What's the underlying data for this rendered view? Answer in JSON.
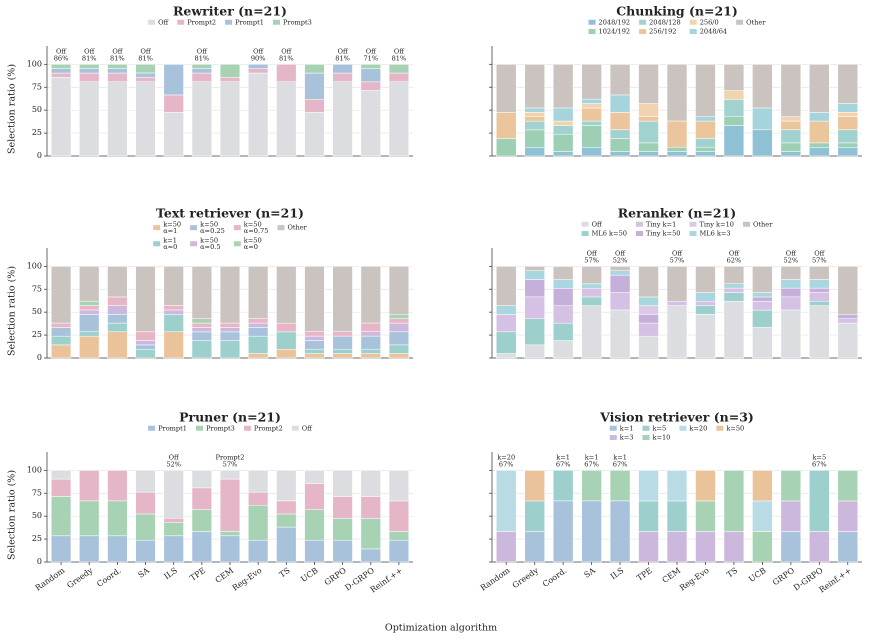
{
  "chart_data": [
    {
      "type": "stacked_bar",
      "title": "Rewriter (n=21)",
      "ylim": [
        0,
        120
      ],
      "yticks": [
        0,
        25,
        50,
        75,
        100
      ],
      "y_label": "Selection ratio (%)",
      "grid": true,
      "series": [
        {
          "name": "Off",
          "color": "#dcdde1",
          "values": [
            85.7,
            81.0,
            81.0,
            81.0,
            47.6,
            81.0,
            81.0,
            90.5,
            81.0,
            47.6,
            81.0,
            71.4,
            81.0
          ]
        },
        {
          "name": "Prompt2",
          "color": "#e5b6c8",
          "values": [
            4.8,
            9.5,
            9.5,
            4.8,
            19.0,
            9.5,
            4.8,
            4.8,
            19.0,
            14.3,
            9.5,
            9.5,
            9.5
          ]
        },
        {
          "name": "Prompt1",
          "color": "#a9c2dc",
          "values": [
            4.8,
            4.8,
            4.8,
            4.8,
            33.3,
            4.8,
            0,
            4.8,
            0,
            28.6,
            9.5,
            14.3,
            0
          ]
        },
        {
          "name": "Prompt3",
          "color": "#a7d3b4",
          "values": [
            4.8,
            4.8,
            4.8,
            9.5,
            0,
            4.8,
            14.3,
            0,
            0,
            9.5,
            0,
            4.8,
            9.5
          ]
        }
      ],
      "annotations": [
        {
          "category": "Random",
          "text": [
            "Off",
            "86%"
          ]
        },
        {
          "category": "Greedy",
          "text": [
            "Off",
            "81%"
          ]
        },
        {
          "category": "Coord.",
          "text": [
            "Off",
            "81%"
          ]
        },
        {
          "category": "SA",
          "text": [
            "Off",
            "81%"
          ]
        },
        {
          "category": "TPE",
          "text": [
            "Off",
            "81%"
          ]
        },
        {
          "category": "Reg-Evo",
          "text": [
            "Off",
            "90%"
          ]
        },
        {
          "category": "TS",
          "text": [
            "Off",
            "81%"
          ]
        },
        {
          "category": "GRPO",
          "text": [
            "Off",
            "81%"
          ]
        },
        {
          "category": "D-GRPO",
          "text": [
            "Off",
            "71%"
          ]
        },
        {
          "category": "Reinf.++",
          "text": [
            "Off",
            "81%"
          ]
        }
      ]
    },
    {
      "type": "stacked_bar",
      "title": "Chunking (n=21)",
      "ylim": [
        0,
        120
      ],
      "grid": true,
      "series": [
        {
          "name": "2048/192",
          "color": "#8fc1d4",
          "values": [
            0,
            9.5,
            4.8,
            9.5,
            4.8,
            4.8,
            4.8,
            4.8,
            33.3,
            28.6,
            4.8,
            9.5,
            9.5
          ]
        },
        {
          "name": "1024/192",
          "color": "#9ccfb4",
          "values": [
            19.0,
            19.0,
            19.0,
            23.8,
            14.3,
            9.5,
            4.8,
            4.8,
            9.5,
            0,
            9.5,
            4.8,
            4.8
          ]
        },
        {
          "name": "2048/128",
          "color": "#a2d2cf",
          "values": [
            0,
            9.5,
            9.5,
            4.8,
            9.5,
            23.8,
            0,
            9.5,
            19.0,
            0,
            14.3,
            0,
            14.3
          ]
        },
        {
          "name": "256/192",
          "color": "#ebc59c",
          "values": [
            28.6,
            4.8,
            0,
            14.3,
            19.0,
            4.8,
            28.6,
            19.0,
            0,
            0,
            9.5,
            23.8,
            14.3
          ]
        },
        {
          "name": "256/0",
          "color": "#f2d3b0",
          "values": [
            0,
            4.8,
            4.8,
            4.8,
            0,
            14.3,
            0,
            0,
            9.5,
            0,
            4.8,
            0,
            4.8
          ]
        },
        {
          "name": "2048/64",
          "color": "#a5d4dc",
          "values": [
            0,
            4.8,
            14.3,
            4.8,
            19.0,
            0,
            0,
            4.8,
            0,
            23.8,
            0,
            9.5,
            9.5
          ]
        },
        {
          "name": "Other",
          "color": "#cbc3bf",
          "values": [
            52.4,
            47.6,
            47.6,
            38.1,
            33.3,
            42.9,
            61.9,
            57.1,
            28.6,
            47.6,
            57.1,
            52.4,
            42.9
          ]
        }
      ]
    },
    {
      "type": "stacked_bar",
      "title": "Text retriever (n=21)",
      "ylim": [
        0,
        120
      ],
      "yticks": [
        0,
        25,
        50,
        75,
        100
      ],
      "y_label": "Selection ratio (%)",
      "grid": true,
      "series": [
        {
          "name": "k=50\nα=1",
          "color": "#eac39b",
          "values": [
            14.3,
            23.8,
            28.6,
            0,
            28.6,
            0,
            0,
            4.8,
            9.5,
            4.8,
            4.8,
            4.8,
            4.8
          ]
        },
        {
          "name": "k=1\nα=0",
          "color": "#9dd0cc",
          "values": [
            9.5,
            4.8,
            9.5,
            9.5,
            19.0,
            19.0,
            19.0,
            19.0,
            19.0,
            4.8,
            4.8,
            4.8,
            9.5
          ]
        },
        {
          "name": "k=50\nα=0.25",
          "color": "#a9c2dc",
          "values": [
            9.5,
            19.0,
            9.5,
            4.8,
            0,
            9.5,
            9.5,
            9.5,
            0,
            9.5,
            14.3,
            14.3,
            14.3
          ]
        },
        {
          "name": "k=50\nα=0.5",
          "color": "#cdb8dd",
          "values": [
            0,
            4.8,
            9.5,
            4.8,
            4.8,
            4.8,
            4.8,
            4.8,
            0,
            4.8,
            0,
            4.8,
            9.5
          ]
        },
        {
          "name": "k=50\nα=0.75",
          "color": "#e7b5c6",
          "values": [
            4.8,
            4.8,
            9.5,
            9.5,
            4.8,
            4.8,
            4.8,
            4.8,
            9.5,
            4.8,
            4.8,
            9.5,
            4.8
          ]
        },
        {
          "name": "k=50\nα=0",
          "color": "#a7d3b4",
          "values": [
            0,
            4.8,
            0,
            0,
            0,
            4.8,
            0,
            0,
            0,
            0,
            0,
            0,
            4.8
          ]
        },
        {
          "name": "Other",
          "color": "#cbc3bf",
          "values": [
            61.9,
            38.1,
            33.3,
            71.4,
            42.9,
            57.1,
            61.9,
            57.1,
            61.9,
            71.4,
            71.4,
            61.9,
            52.4
          ]
        }
      ]
    },
    {
      "type": "stacked_bar",
      "title": "Reranker (n=21)",
      "ylim": [
        0,
        120
      ],
      "grid": true,
      "series": [
        {
          "name": "Off",
          "color": "#dcdde1",
          "values": [
            4.8,
            14.3,
            19.0,
            57.1,
            52.4,
            23.8,
            57.1,
            47.6,
            61.9,
            33.3,
            52.4,
            57.1,
            38.1
          ]
        },
        {
          "name": "ML6 k=50",
          "color": "#9dd0cc",
          "values": [
            23.8,
            28.6,
            19.0,
            9.5,
            0,
            0,
            0,
            9.5,
            9.5,
            19.0,
            0,
            4.8,
            0
          ]
        },
        {
          "name": "Tiny k=1",
          "color": "#d4c1e4",
          "values": [
            19.0,
            23.8,
            19.0,
            9.5,
            19.0,
            14.3,
            4.8,
            4.8,
            4.8,
            9.5,
            14.3,
            9.5,
            4.8
          ]
        },
        {
          "name": "Tiny k=50",
          "color": "#c4b0da",
          "values": [
            0,
            19.0,
            19.0,
            0,
            19.0,
            9.5,
            0,
            0,
            0,
            4.8,
            9.5,
            4.8,
            4.8
          ]
        },
        {
          "name": "Tiny k=10",
          "color": "#dcc9e8",
          "values": [
            0,
            0,
            0,
            0,
            0,
            9.5,
            0,
            0,
            0,
            0,
            0,
            0,
            0
          ]
        },
        {
          "name": "ML6 k=3",
          "color": "#a9d7e0",
          "values": [
            9.5,
            9.5,
            9.5,
            4.8,
            4.8,
            9.5,
            0,
            9.5,
            4.8,
            4.8,
            9.5,
            9.5,
            0
          ]
        },
        {
          "name": "Other",
          "color": "#cbc3bf",
          "values": [
            42.9,
            4.8,
            14.3,
            19.0,
            4.8,
            33.3,
            38.1,
            28.6,
            19.0,
            28.6,
            14.3,
            14.3,
            52.4
          ]
        }
      ],
      "annotations": [
        {
          "category": "SA",
          "text": [
            "Off",
            "57%"
          ]
        },
        {
          "category": "ILS",
          "text": [
            "Off",
            "52%"
          ]
        },
        {
          "category": "CEM",
          "text": [
            "Off",
            "57%"
          ]
        },
        {
          "category": "TS",
          "text": [
            "Off",
            "62%"
          ]
        },
        {
          "category": "GRPO",
          "text": [
            "Off",
            "52%"
          ]
        },
        {
          "category": "D-GRPO",
          "text": [
            "Off",
            "57%"
          ]
        }
      ]
    },
    {
      "type": "stacked_bar",
      "title": "Pruner (n=21)",
      "ylim": [
        0,
        120
      ],
      "yticks": [
        0,
        25,
        50,
        75,
        100
      ],
      "y_label": "Selection ratio (%)",
      "grid": true,
      "categories": [
        "Random",
        "Greedy",
        "Coord.",
        "SA",
        "ILS",
        "TPE",
        "CEM",
        "Reg-Evo",
        "TS",
        "UCB",
        "GRPO",
        "D-GRPO",
        "Reinf.++"
      ],
      "series": [
        {
          "name": "Prompt1",
          "color": "#a9c2dc",
          "values": [
            28.6,
            28.6,
            28.6,
            23.8,
            28.6,
            33.3,
            28.6,
            23.8,
            38.1,
            23.8,
            23.8,
            14.3,
            23.8
          ]
        },
        {
          "name": "Prompt3",
          "color": "#a7d3b4",
          "values": [
            42.9,
            38.1,
            38.1,
            28.6,
            14.3,
            23.8,
            4.8,
            38.1,
            14.3,
            33.3,
            23.8,
            33.3,
            9.5
          ]
        },
        {
          "name": "Prompt2",
          "color": "#e5b6c8",
          "values": [
            19.0,
            33.3,
            33.3,
            23.8,
            4.8,
            23.8,
            57.1,
            14.3,
            14.3,
            28.6,
            23.8,
            23.8,
            33.3
          ]
        },
        {
          "name": "Off",
          "color": "#dcdde1",
          "values": [
            9.5,
            0,
            0,
            23.8,
            52.4,
            19.0,
            9.5,
            23.8,
            33.3,
            14.3,
            28.6,
            28.6,
            33.3
          ]
        }
      ],
      "annotations": [
        {
          "category": "ILS",
          "text": [
            "Off",
            "52%"
          ]
        },
        {
          "category": "CEM",
          "text": [
            "Prompt2",
            "57%"
          ]
        }
      ]
    },
    {
      "type": "stacked_bar",
      "title": "Vision retriever (n=3)",
      "ylim": [
        0,
        120
      ],
      "grid": true,
      "categories": [
        "Random",
        "Greedy",
        "Coord.",
        "SA",
        "ILS",
        "TPE",
        "CEM",
        "Reg-Evo",
        "TS",
        "UCB",
        "GRPO",
        "D-GRPO",
        "Reinf.++"
      ],
      "series": [
        {
          "name": "k=1",
          "color": "#a9c2dc",
          "values": [
            0,
            33.3,
            66.7,
            66.7,
            66.7,
            0,
            0,
            0,
            0,
            0,
            33.3,
            0,
            33.3
          ]
        },
        {
          "name": "k=3",
          "color": "#cdb8dd",
          "values": [
            33.3,
            0,
            0,
            0,
            0,
            33.3,
            33.3,
            33.3,
            33.3,
            0,
            33.3,
            33.3,
            33.3
          ]
        },
        {
          "name": "k=5",
          "color": "#9dd0cc",
          "values": [
            0,
            33.3,
            33.3,
            0,
            0,
            33.3,
            33.3,
            0,
            0,
            0,
            0,
            66.7,
            0
          ]
        },
        {
          "name": "k=10",
          "color": "#a7d3b4",
          "values": [
            0,
            0,
            0,
            33.3,
            33.3,
            0,
            0,
            33.3,
            66.7,
            33.3,
            33.3,
            0,
            33.3
          ]
        },
        {
          "name": "k=20",
          "color": "#b8dbe6",
          "values": [
            66.7,
            0,
            0,
            0,
            0,
            33.3,
            33.3,
            0,
            0,
            33.3,
            0,
            0,
            0
          ]
        },
        {
          "name": "k=50",
          "color": "#eac39b",
          "values": [
            0,
            33.3,
            0,
            0,
            0,
            0,
            0,
            33.3,
            0,
            33.3,
            0,
            0,
            0
          ]
        }
      ],
      "annotations": [
        {
          "category": "Random",
          "text": [
            "k=20",
            "67%"
          ]
        },
        {
          "category": "Coord.",
          "text": [
            "k=1",
            "67%"
          ]
        },
        {
          "category": "SA",
          "text": [
            "k=1",
            "67%"
          ]
        },
        {
          "category": "ILS",
          "text": [
            "k=1",
            "67%"
          ]
        },
        {
          "category": "D-GRPO",
          "text": [
            "k=5",
            "67%"
          ]
        }
      ]
    }
  ],
  "x_label": "Optimization algorithm"
}
